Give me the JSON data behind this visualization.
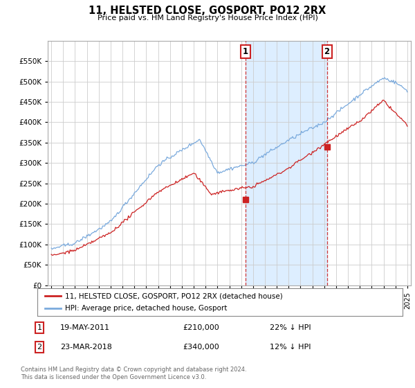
{
  "title": "11, HELSTED CLOSE, GOSPORT, PO12 2RX",
  "subtitle": "Price paid vs. HM Land Registry's House Price Index (HPI)",
  "ylim": [
    0,
    600000
  ],
  "yticks": [
    0,
    50000,
    100000,
    150000,
    200000,
    250000,
    300000,
    350000,
    400000,
    450000,
    500000,
    550000
  ],
  "xlim_start": 1994.7,
  "xlim_end": 2025.3,
  "sale1_x": 2011.38,
  "sale1_y": 210000,
  "sale1_label": "1",
  "sale1_date": "19-MAY-2011",
  "sale1_price": "£210,000",
  "sale1_pct": "22% ↓ HPI",
  "sale2_x": 2018.22,
  "sale2_y": 340000,
  "sale2_label": "2",
  "sale2_date": "23-MAR-2018",
  "sale2_price": "£340,000",
  "sale2_pct": "12% ↓ HPI",
  "line1_color": "#cc2222",
  "line2_color": "#7aaadd",
  "shaded_color": "#ddeeff",
  "vline_color": "#cc2222",
  "legend1_label": "11, HELSTED CLOSE, GOSPORT, PO12 2RX (detached house)",
  "legend2_label": "HPI: Average price, detached house, Gosport",
  "footer": "Contains HM Land Registry data © Crown copyright and database right 2024.\nThis data is licensed under the Open Government Licence v3.0.",
  "background_color": "#ffffff"
}
